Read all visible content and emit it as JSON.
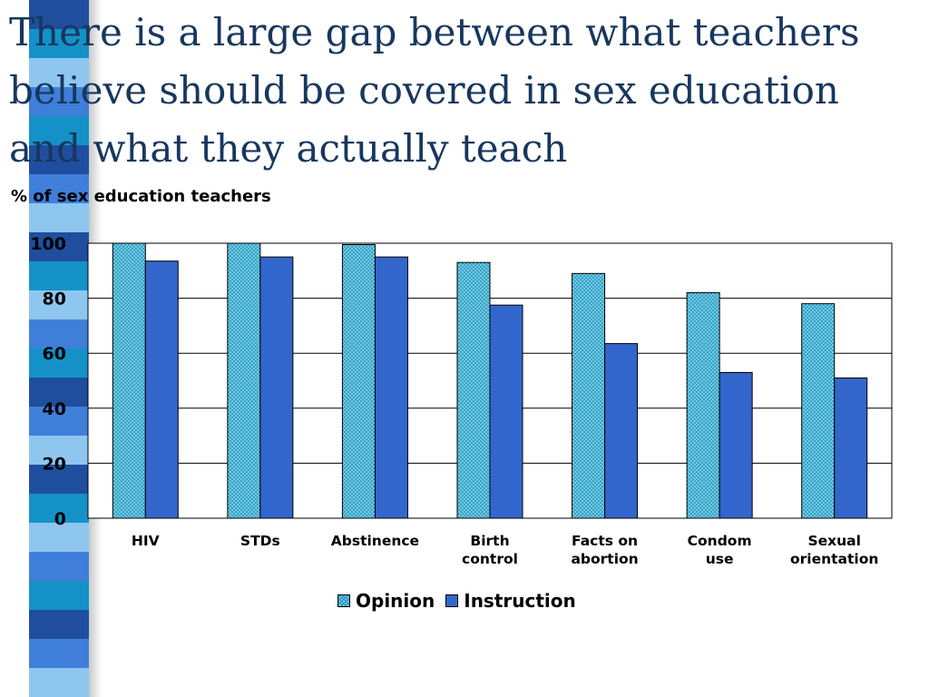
{
  "slide": {
    "title_lines": [
      "There is a large gap between what teachers",
      "believe should be covered in sex education",
      "and what they actually teach"
    ],
    "stripe_colors": [
      "#1f4e9e",
      "#0a0a0a",
      "#3f7fd9",
      "#e8e4c0",
      "#1492c8",
      "#0b2f66",
      "#8ec6f0",
      "#4a8fb0"
    ]
  },
  "chart_data": {
    "type": "bar",
    "ylabel": "% of sex education teachers",
    "ylim": [
      0,
      100
    ],
    "yticks": [
      0,
      20,
      40,
      60,
      80,
      100
    ],
    "grid": true,
    "categories": [
      [
        "HIV"
      ],
      [
        "STDs"
      ],
      [
        "Abstinence"
      ],
      [
        "Birth",
        "control"
      ],
      [
        "Facts on",
        "abortion"
      ],
      [
        "Condom",
        "use"
      ],
      [
        "Sexual",
        "orientation"
      ]
    ],
    "series": [
      {
        "name": "Opinion",
        "values": [
          100,
          100,
          99.5,
          93,
          89,
          82,
          78
        ],
        "color": "#7fd3ea",
        "pattern": "crosshatch"
      },
      {
        "name": "Instruction",
        "values": [
          93.5,
          95,
          95,
          77.5,
          63.5,
          53,
          51
        ],
        "color": "#3366cc",
        "pattern": "solid"
      }
    ],
    "legend_position": "bottom"
  }
}
